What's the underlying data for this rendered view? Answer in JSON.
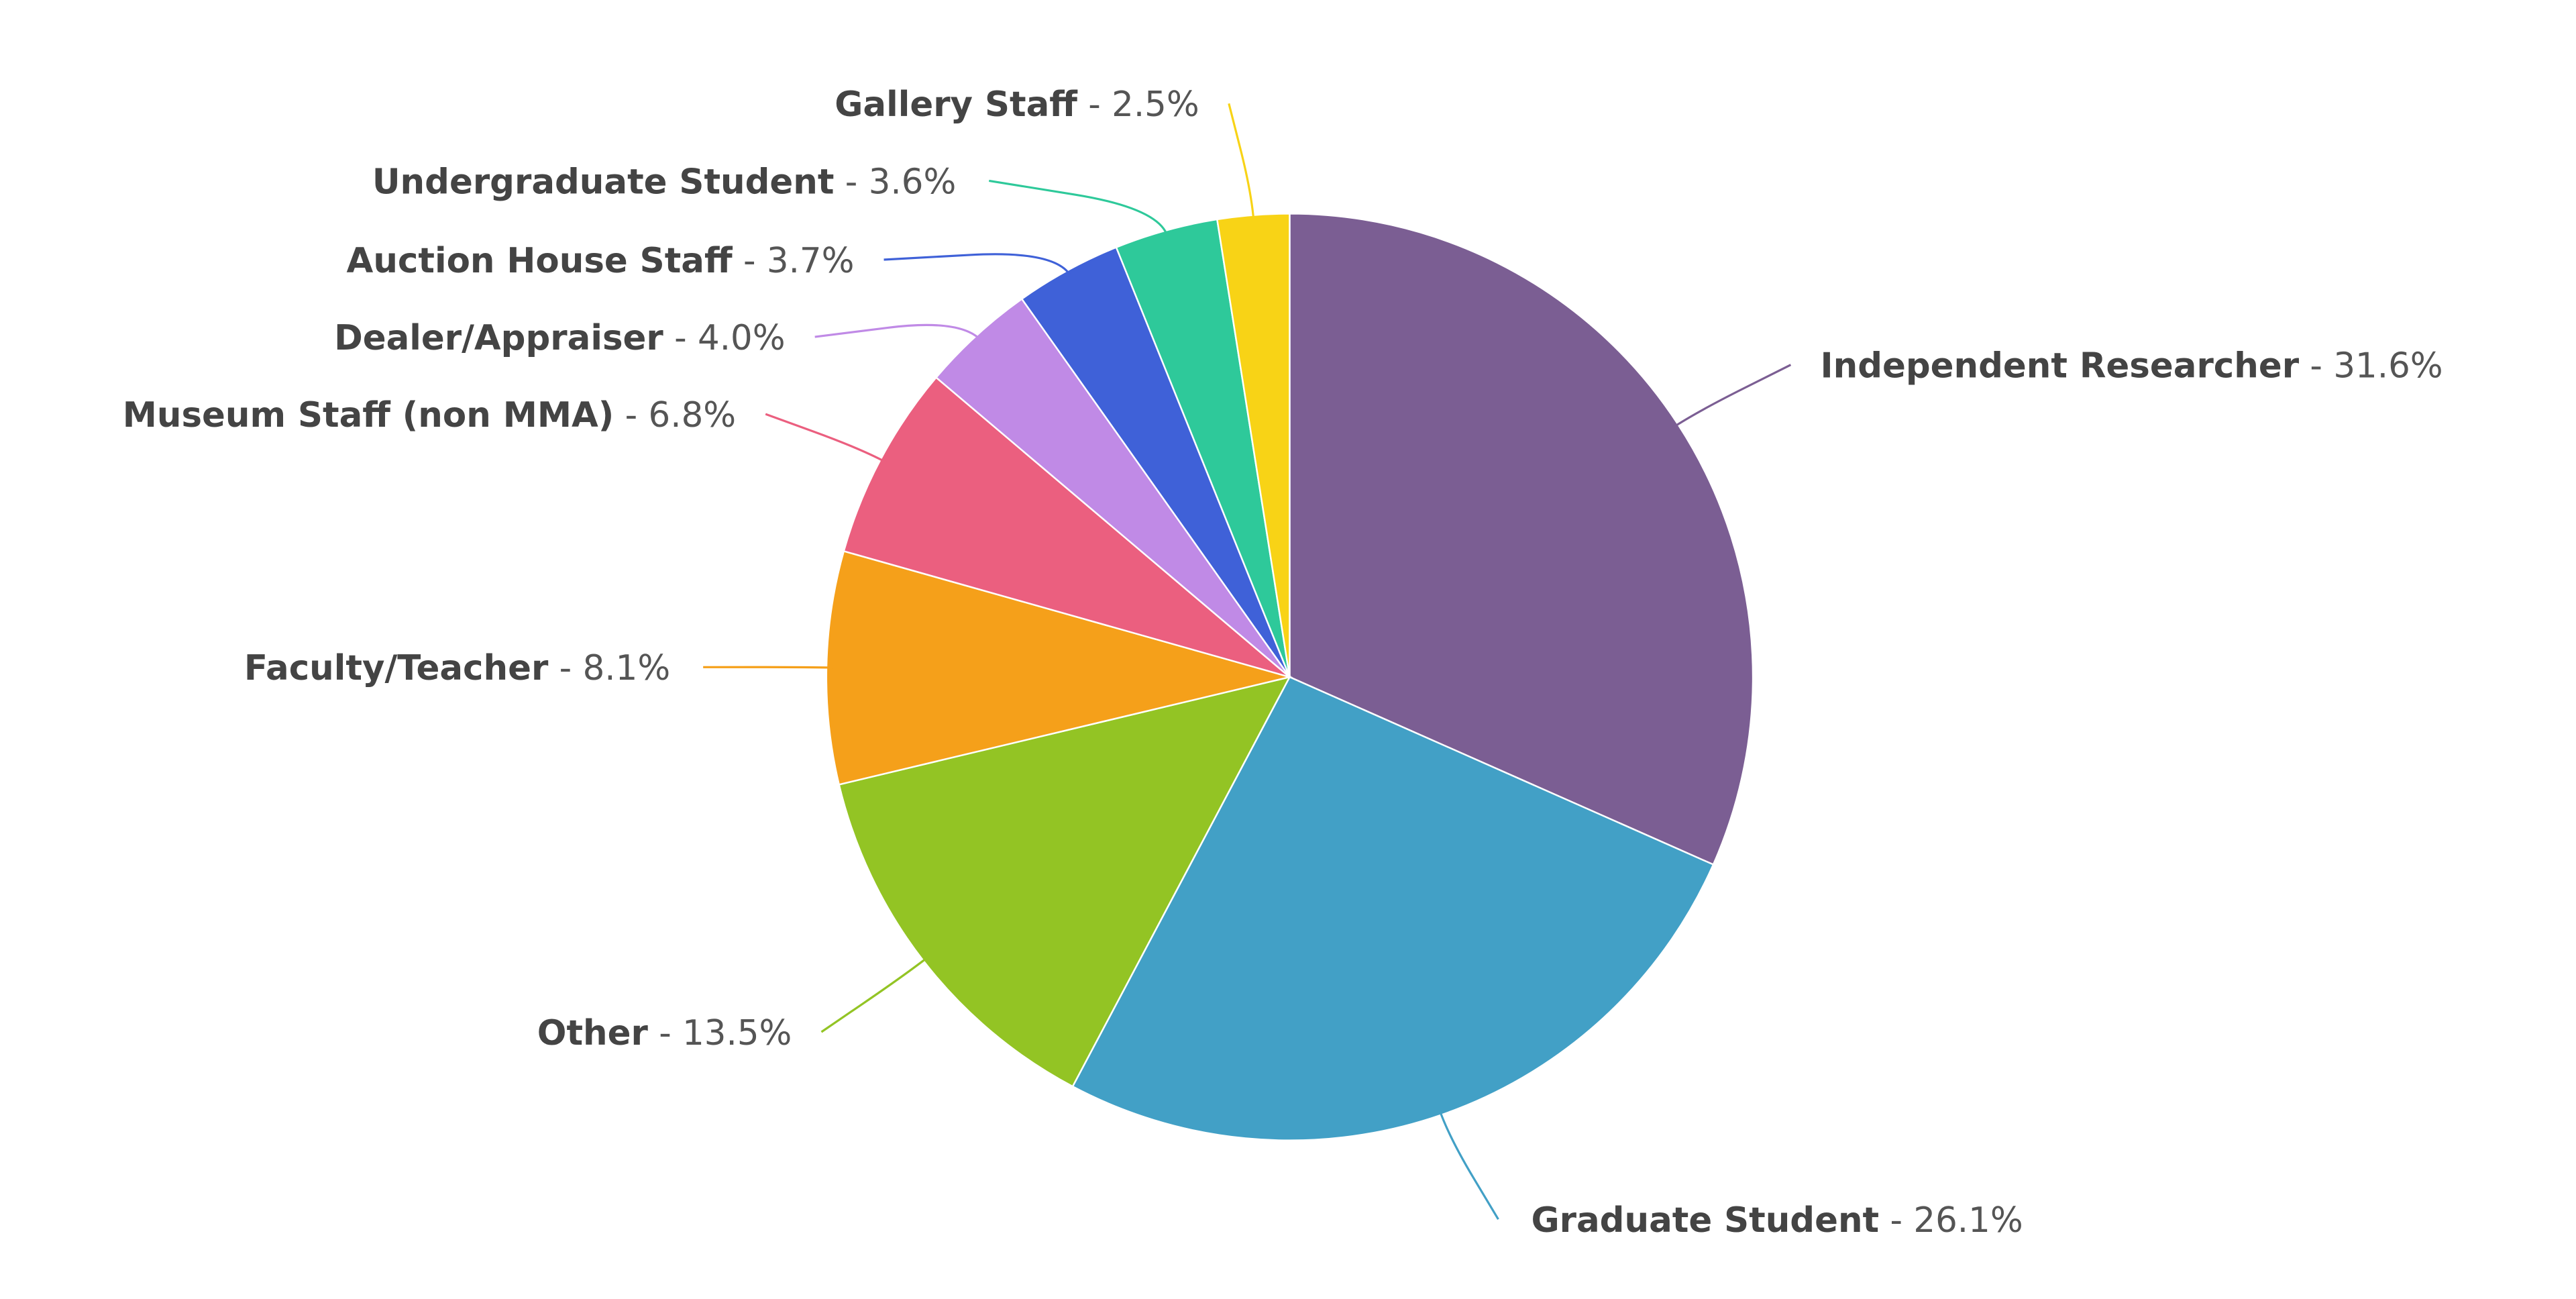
{
  "chart_data": {
    "type": "pie",
    "categories": [
      "Independent Researcher",
      "Graduate Student",
      "Other",
      "Faculty/Teacher",
      "Museum Staff (non MMA)",
      "Dealer/Appraiser",
      "Auction House Staff",
      "Undergraduate Student",
      "Gallery Staff"
    ],
    "values": [
      31.6,
      26.1,
      13.5,
      8.1,
      6.8,
      4.0,
      3.7,
      3.6,
      2.5
    ],
    "value_labels": [
      "31.6%",
      "26.1%",
      "13.5%",
      "8.1%",
      "6.8%",
      "4.0%",
      "3.7%",
      "3.6%",
      "2.5%"
    ],
    "label_separator": " - ",
    "colors": [
      "#7b5e93",
      "#42a0c6",
      "#93c424",
      "#f5a01a",
      "#eb5f7f",
      "#c08ae6",
      "#3f61d8",
      "#2ec99a",
      "#f8d316"
    ]
  }
}
